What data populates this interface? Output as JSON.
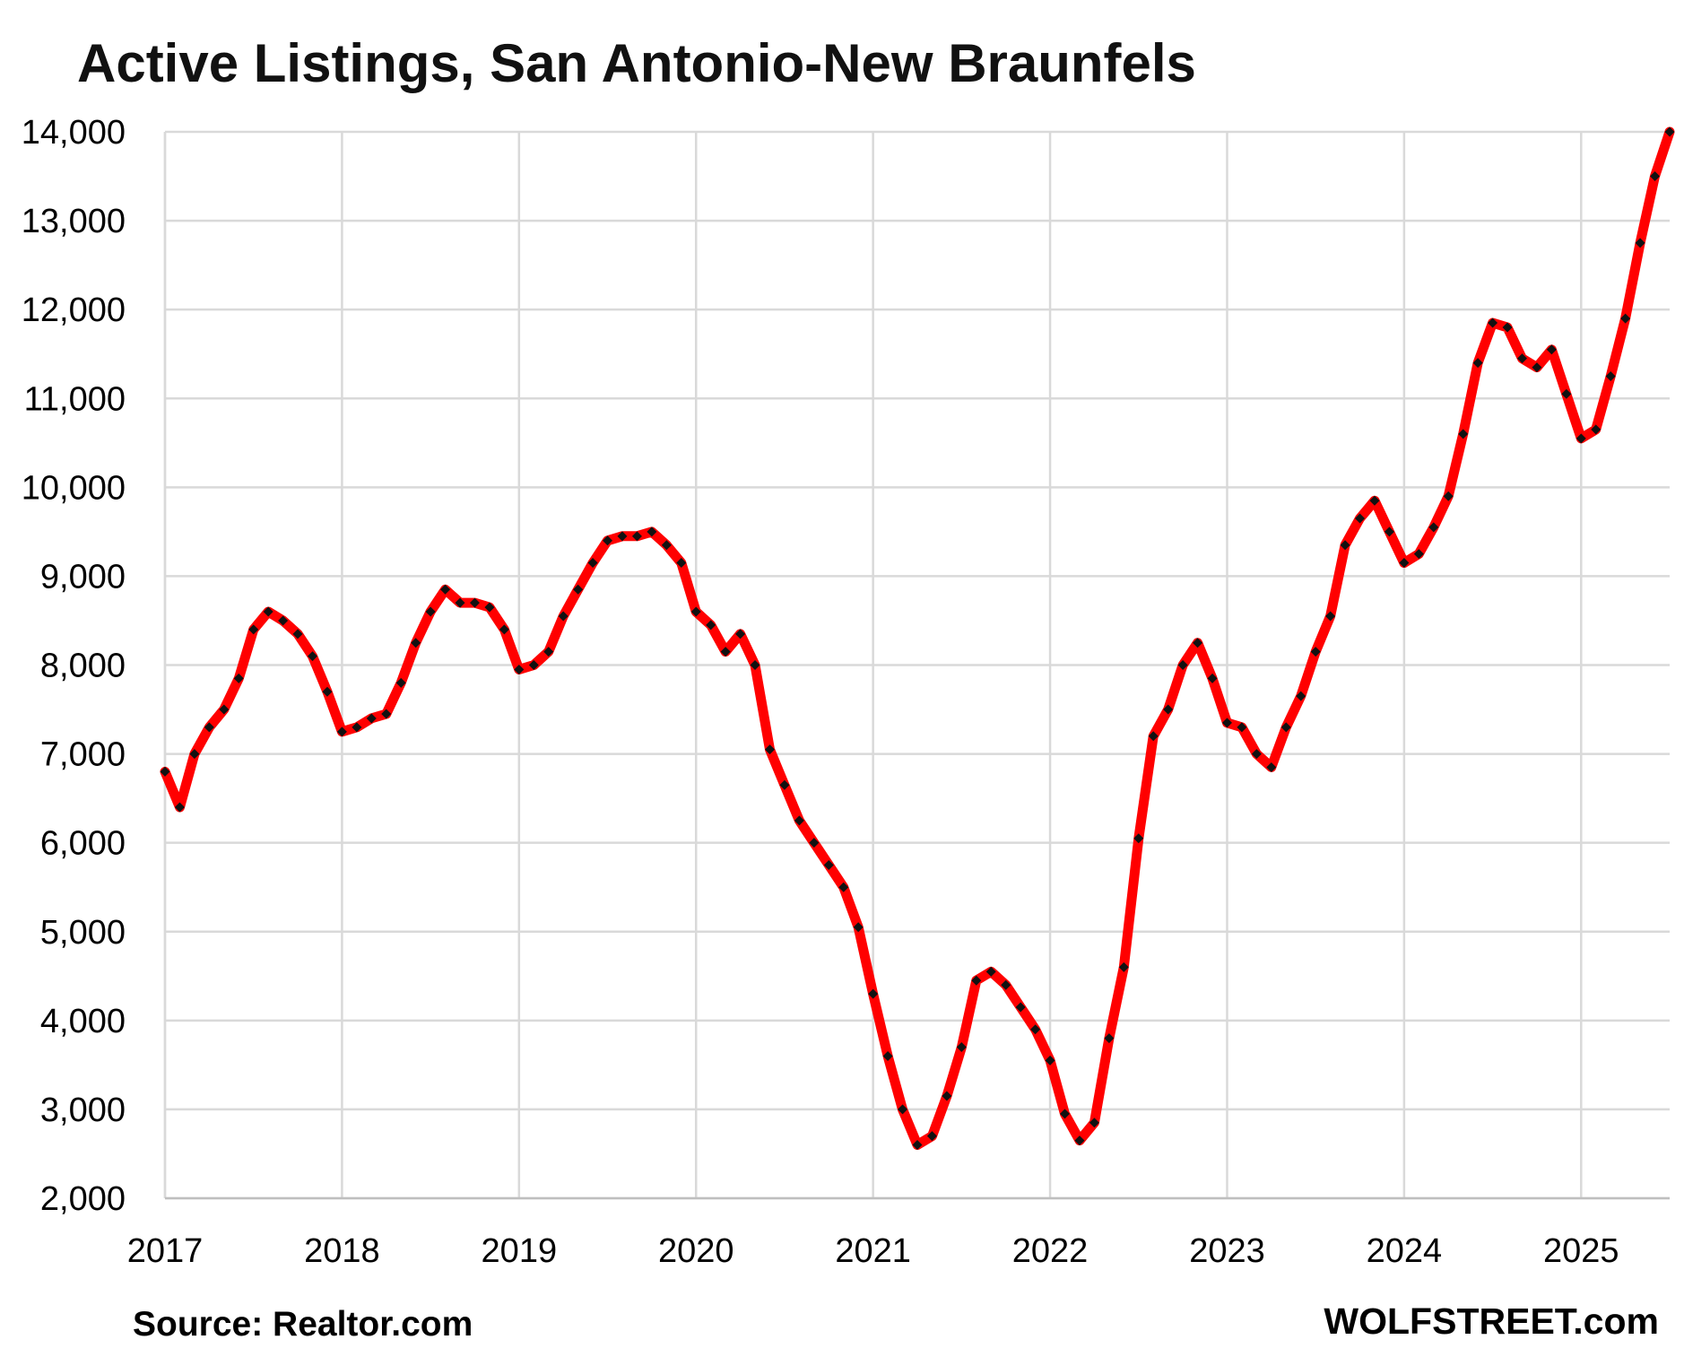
{
  "chart_data": {
    "type": "line",
    "title": "Active Listings, San Antonio-New Braunfels",
    "xlabel": "",
    "ylabel": "",
    "ylim": [
      2000,
      14000
    ],
    "xlim": [
      2017,
      2025.5
    ],
    "yticks": [
      2000,
      3000,
      4000,
      5000,
      6000,
      7000,
      8000,
      9000,
      10000,
      11000,
      12000,
      13000,
      14000
    ],
    "ytick_labels": [
      "2,000",
      "3,000",
      "4,000",
      "5,000",
      "6,000",
      "7,000",
      "8,000",
      "9,000",
      "10,000",
      "11,000",
      "12,000",
      "13,000",
      "14,000"
    ],
    "xticks": [
      2017,
      2018,
      2019,
      2020,
      2021,
      2022,
      2023,
      2024,
      2025
    ],
    "xtick_labels": [
      "2017",
      "2018",
      "2019",
      "2020",
      "2021",
      "2022",
      "2023",
      "2024",
      "2025"
    ],
    "grid": true,
    "line_color": "#ff0000",
    "marker_color": "#111111",
    "x": [
      "2017-01",
      "2017-02",
      "2017-03",
      "2017-04",
      "2017-05",
      "2017-06",
      "2017-07",
      "2017-08",
      "2017-09",
      "2017-10",
      "2017-11",
      "2017-12",
      "2018-01",
      "2018-02",
      "2018-03",
      "2018-04",
      "2018-05",
      "2018-06",
      "2018-07",
      "2018-08",
      "2018-09",
      "2018-10",
      "2018-11",
      "2018-12",
      "2019-01",
      "2019-02",
      "2019-03",
      "2019-04",
      "2019-05",
      "2019-06",
      "2019-07",
      "2019-08",
      "2019-09",
      "2019-10",
      "2019-11",
      "2019-12",
      "2020-01",
      "2020-02",
      "2020-03",
      "2020-04",
      "2020-05",
      "2020-06",
      "2020-07",
      "2020-08",
      "2020-09",
      "2020-10",
      "2020-11",
      "2020-12",
      "2021-01",
      "2021-02",
      "2021-03",
      "2021-04",
      "2021-05",
      "2021-06",
      "2021-07",
      "2021-08",
      "2021-09",
      "2021-10",
      "2021-11",
      "2021-12",
      "2022-01",
      "2022-02",
      "2022-03",
      "2022-04",
      "2022-05",
      "2022-06",
      "2022-07",
      "2022-08",
      "2022-09",
      "2022-10",
      "2022-11",
      "2022-12",
      "2023-01",
      "2023-02",
      "2023-03",
      "2023-04",
      "2023-05",
      "2023-06",
      "2023-07",
      "2023-08",
      "2023-09",
      "2023-10",
      "2023-11",
      "2023-12",
      "2024-01",
      "2024-02",
      "2024-03",
      "2024-04",
      "2024-05",
      "2024-06",
      "2024-07",
      "2024-08",
      "2024-09",
      "2024-10",
      "2024-11",
      "2024-12",
      "2025-01",
      "2025-02",
      "2025-03",
      "2025-04",
      "2025-05",
      "2025-06",
      "2025-07"
    ],
    "values": [
      6800,
      6400,
      7000,
      7300,
      7500,
      7850,
      8400,
      8600,
      8500,
      8350,
      8100,
      7700,
      7250,
      7300,
      7400,
      7450,
      7800,
      8250,
      8600,
      8850,
      8700,
      8700,
      8650,
      8400,
      7950,
      8000,
      8150,
      8550,
      8850,
      9150,
      9400,
      9450,
      9450,
      9500,
      9350,
      9150,
      8600,
      8450,
      8150,
      8350,
      8000,
      7050,
      6650,
      6250,
      6000,
      5750,
      5500,
      5050,
      4300,
      3600,
      3000,
      2600,
      2700,
      3150,
      3700,
      4450,
      4550,
      4400,
      4150,
      3900,
      3550,
      2950,
      2650,
      2850,
      3800,
      4600,
      6050,
      7200,
      7500,
      8000,
      8250,
      7850,
      7350,
      7300,
      7000,
      6850,
      7300,
      7650,
      8150,
      8550,
      9350,
      9650,
      9850,
      9500,
      9150,
      9250,
      9550,
      9900,
      10600,
      11400,
      11850,
      11800,
      11450,
      11350,
      11550,
      11050,
      10550,
      10650,
      11250,
      11900,
      12750,
      13500,
      14000
    ]
  },
  "footer": {
    "source": "Source: Realtor.com",
    "brand": "WOLFSTREET.com"
  }
}
